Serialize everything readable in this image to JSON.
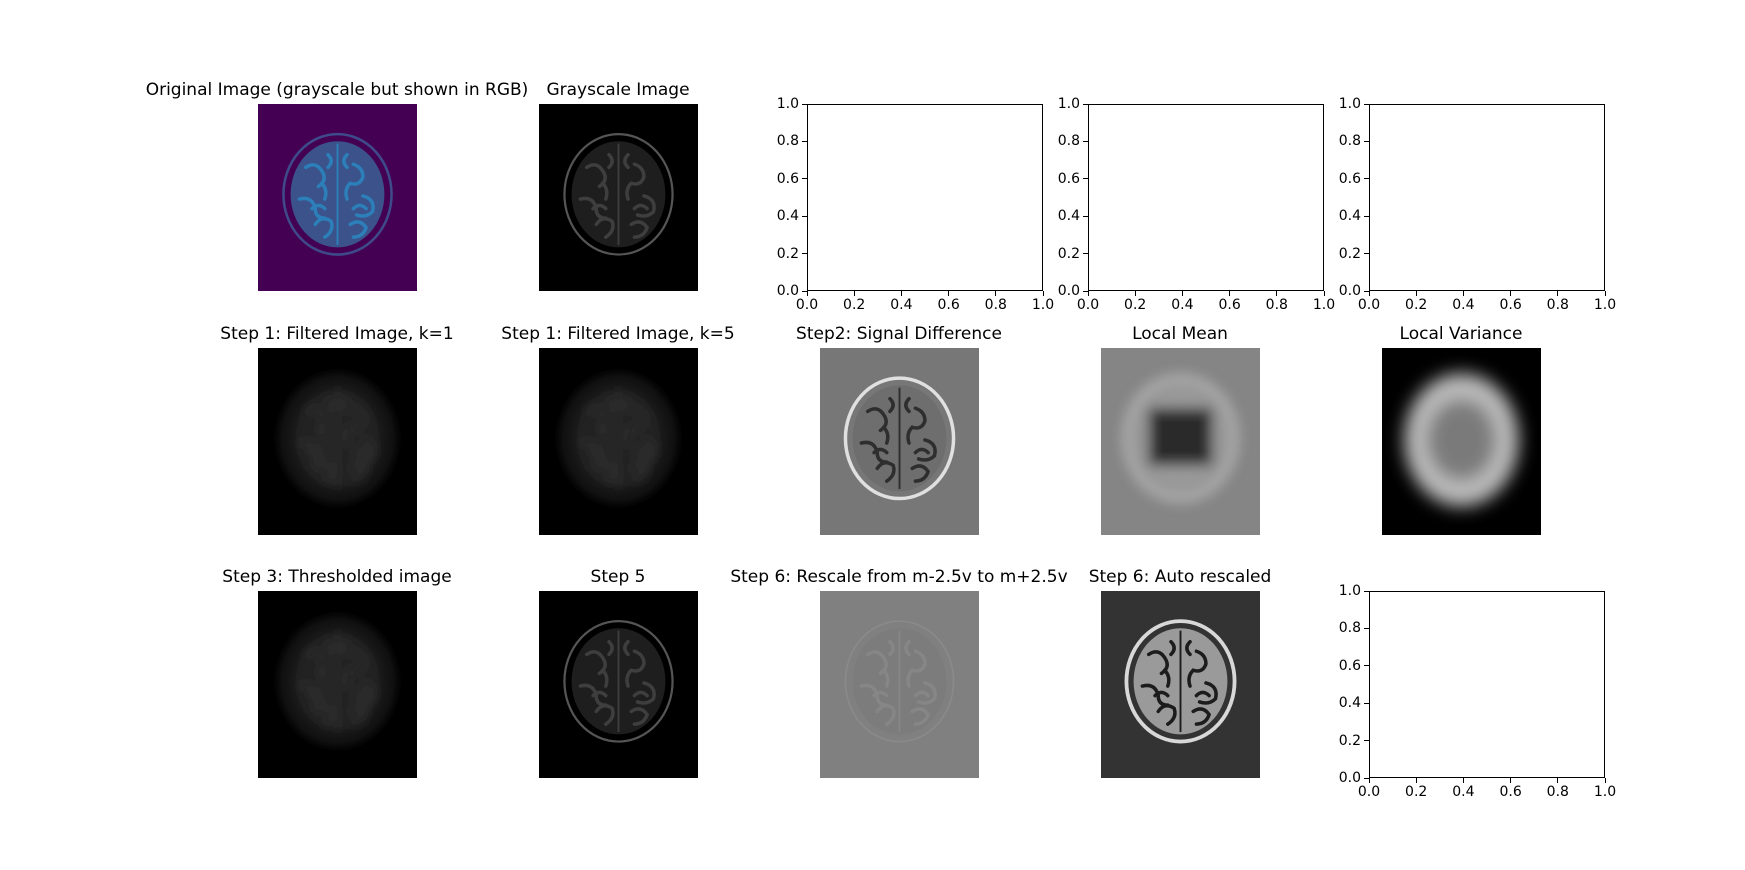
{
  "chart_data": [
    {
      "type": "image",
      "title": "Original Image (grayscale but shown in RGB)",
      "colormap": "viridis-like",
      "image": "brain-mri"
    },
    {
      "type": "image",
      "title": "Grayscale Image",
      "colormap": "gray",
      "image": "brain-mri"
    },
    {
      "type": "empty-axes",
      "title": "",
      "xlim": [
        0,
        1
      ],
      "ylim": [
        0,
        1
      ],
      "xticks": [
        "0.0",
        "0.2",
        "0.4",
        "0.6",
        "0.8",
        "1.0"
      ],
      "yticks": [
        "0.0",
        "0.2",
        "0.4",
        "0.6",
        "0.8",
        "1.0"
      ]
    },
    {
      "type": "empty-axes",
      "title": "",
      "xlim": [
        0,
        1
      ],
      "ylim": [
        0,
        1
      ],
      "xticks": [
        "0.0",
        "0.2",
        "0.4",
        "0.6",
        "0.8",
        "1.0"
      ],
      "yticks": [
        "0.0",
        "0.2",
        "0.4",
        "0.6",
        "0.8",
        "1.0"
      ]
    },
    {
      "type": "empty-axes",
      "title": "",
      "xlim": [
        0,
        1
      ],
      "ylim": [
        0,
        1
      ],
      "xticks": [
        "0.0",
        "0.2",
        "0.4",
        "0.6",
        "0.8",
        "1.0"
      ],
      "yticks": [
        "0.0",
        "0.2",
        "0.4",
        "0.6",
        "0.8",
        "1.0"
      ]
    },
    {
      "type": "image",
      "title": "Step 1: Filtered Image, k=1",
      "colormap": "gray",
      "image": "brain-mri-blurred"
    },
    {
      "type": "image",
      "title": "Step 1: Filtered Image, k=5",
      "colormap": "gray",
      "image": "brain-mri-blurred"
    },
    {
      "type": "image",
      "title": "Step2: Signal Difference",
      "colormap": "gray",
      "image": "brain-mri-edges"
    },
    {
      "type": "image",
      "title": "Local Mean",
      "colormap": "gray",
      "image": "local-mean"
    },
    {
      "type": "image",
      "title": "Local Variance",
      "colormap": "gray",
      "image": "local-variance"
    },
    {
      "type": "image",
      "title": "Step 3: Thresholded image",
      "colormap": "gray",
      "image": "brain-mri-blurred"
    },
    {
      "type": "image",
      "title": "Step 5",
      "colormap": "gray",
      "image": "brain-mri"
    },
    {
      "type": "image",
      "title": "Step 6: Rescale from m-2.5v to m+2.5v",
      "colormap": "gray",
      "image": "brain-mri-faint"
    },
    {
      "type": "image",
      "title": "Step 6: Auto rescaled",
      "colormap": "gray",
      "image": "brain-mri-contrast"
    },
    {
      "type": "empty-axes",
      "title": "",
      "xlim": [
        0,
        1
      ],
      "ylim": [
        0,
        1
      ],
      "xticks": [
        "0.0",
        "0.2",
        "0.4",
        "0.6",
        "0.8",
        "1.0"
      ],
      "yticks": [
        "0.0",
        "0.2",
        "0.4",
        "0.6",
        "0.8",
        "1.0"
      ]
    }
  ],
  "colors": {
    "viridis_bg": "#440154",
    "viridis_brain": "#3b528b",
    "viridis_highlight": "#2c7fb8",
    "black": "#000000",
    "mid_gray": "#777777"
  }
}
